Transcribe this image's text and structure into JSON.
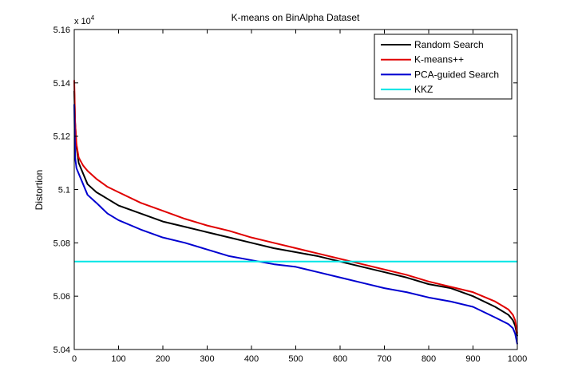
{
  "chart_data": {
    "type": "line",
    "title": "K-means on BinAlpha Dataset",
    "xlabel": "",
    "ylabel": "Distortion",
    "y_multiplier": {
      "base": "x 10",
      "exponent": "4"
    },
    "xlim": [
      0,
      1000
    ],
    "ylim": [
      50400,
      51600
    ],
    "x_ticks": [
      0,
      100,
      200,
      300,
      400,
      500,
      600,
      700,
      800,
      900,
      1000
    ],
    "y_ticks": [
      50400,
      50600,
      50800,
      51000,
      51200,
      51400,
      51600
    ],
    "y_tick_labels": [
      "5.04",
      "5.06",
      "5.08",
      "5.1",
      "5.12",
      "5.14",
      "5.16"
    ],
    "grid": false,
    "legend_position": "top-right",
    "series": [
      {
        "name": "Random Search",
        "color": "#000000",
        "x": [
          0,
          2,
          5,
          10,
          20,
          30,
          50,
          75,
          100,
          150,
          200,
          250,
          300,
          350,
          400,
          450,
          500,
          550,
          600,
          650,
          700,
          750,
          800,
          850,
          900,
          950,
          980,
          990,
          995,
          1000
        ],
        "y": [
          51370,
          51250,
          51160,
          51100,
          51060,
          51020,
          50990,
          50965,
          50940,
          50910,
          50880,
          50860,
          50840,
          50820,
          50800,
          50780,
          50765,
          50750,
          50730,
          50710,
          50690,
          50670,
          50645,
          50630,
          50600,
          50560,
          50530,
          50510,
          50490,
          50450
        ]
      },
      {
        "name": "K-means++",
        "color": "#e00000",
        "x": [
          0,
          2,
          5,
          10,
          20,
          30,
          50,
          75,
          100,
          150,
          200,
          250,
          300,
          350,
          400,
          450,
          500,
          550,
          600,
          650,
          700,
          750,
          800,
          850,
          900,
          950,
          980,
          990,
          995,
          1000
        ],
        "y": [
          51410,
          51250,
          51170,
          51120,
          51090,
          51070,
          51040,
          51010,
          50990,
          50950,
          50920,
          50890,
          50865,
          50845,
          50820,
          50800,
          50780,
          50760,
          50740,
          50720,
          50700,
          50680,
          50655,
          50635,
          50615,
          50580,
          50550,
          50530,
          50510,
          50460
        ]
      },
      {
        "name": "PCA-guided Search",
        "color": "#0000d0",
        "x": [
          0,
          2,
          5,
          10,
          20,
          30,
          50,
          75,
          100,
          150,
          200,
          250,
          300,
          350,
          400,
          450,
          500,
          550,
          600,
          650,
          700,
          750,
          800,
          850,
          900,
          950,
          980,
          990,
          995,
          1000
        ],
        "y": [
          51320,
          51120,
          51080,
          51060,
          51020,
          50980,
          50950,
          50910,
          50885,
          50850,
          50820,
          50800,
          50775,
          50750,
          50735,
          50720,
          50710,
          50690,
          50670,
          50650,
          50630,
          50615,
          50595,
          50580,
          50560,
          50520,
          50495,
          50480,
          50460,
          50420
        ]
      },
      {
        "name": "KKZ",
        "color": "#00e5e5",
        "x": [
          0,
          1000
        ],
        "y": [
          50730,
          50730
        ]
      }
    ]
  }
}
